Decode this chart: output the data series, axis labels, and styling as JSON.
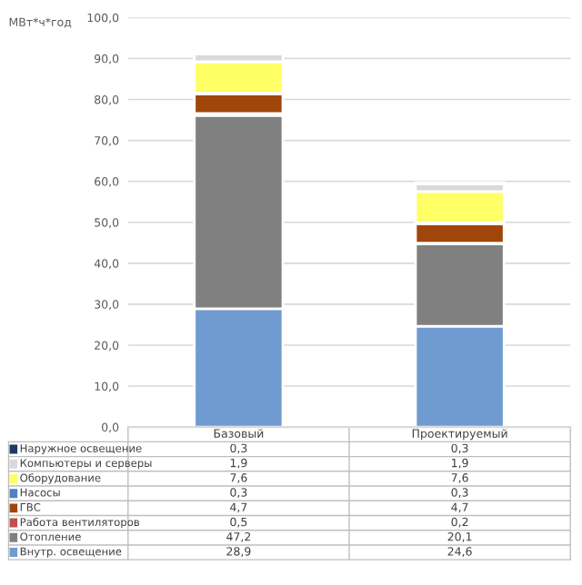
{
  "chart_data": {
    "type": "bar",
    "stacked": true,
    "ylabel": "МВт*ч*год",
    "categories": [
      "Базовый",
      "Проектируемый"
    ],
    "series": [
      {
        "name": "Внутр. освещение",
        "color": "#6f9bd1",
        "values": [
          28.9,
          24.6
        ],
        "value_labels": [
          "28,9",
          "24,6"
        ]
      },
      {
        "name": "Отопление",
        "color": "#808080",
        "values": [
          47.2,
          20.1
        ],
        "value_labels": [
          "47,2",
          "20,1"
        ]
      },
      {
        "name": "Работа вентиляторов",
        "color": "#c0504d",
        "values": [
          0.5,
          0.2
        ],
        "value_labels": [
          "0,5",
          "0,2"
        ]
      },
      {
        "name": "ГВС",
        "color": "#a0460a",
        "values": [
          4.7,
          4.7
        ],
        "value_labels": [
          "4,7",
          "4,7"
        ]
      },
      {
        "name": "Насосы",
        "color": "#4f81bd",
        "values": [
          0.3,
          0.3
        ],
        "value_labels": [
          "0,3",
          "0,3"
        ]
      },
      {
        "name": "Оборудование",
        "color": "#ffff66",
        "values": [
          7.6,
          7.6
        ],
        "value_labels": [
          "7,6",
          "7,6"
        ]
      },
      {
        "name": "Компьютеры и серверы",
        "color": "#d9d9d9",
        "values": [
          1.9,
          1.9
        ],
        "value_labels": [
          "1,9",
          "1,9"
        ]
      },
      {
        "name": "Наружное освещение",
        "color": "#1f3864",
        "values": [
          0.3,
          0.3
        ],
        "value_labels": [
          "0,3",
          "0,3"
        ]
      }
    ],
    "ylim": [
      0,
      100
    ],
    "yticks": [
      {
        "value": 0,
        "label": "0,0"
      },
      {
        "value": 10,
        "label": "10,0"
      },
      {
        "value": 20,
        "label": "20,0"
      },
      {
        "value": 30,
        "label": "30,0"
      },
      {
        "value": 40,
        "label": "40,0"
      },
      {
        "value": 50,
        "label": "50,0"
      },
      {
        "value": 60,
        "label": "60,0"
      },
      {
        "value": 70,
        "label": "70,0"
      },
      {
        "value": 80,
        "label": "80,0"
      },
      {
        "value": 90,
        "label": "90,0"
      },
      {
        "value": 100,
        "label": "100,0"
      }
    ],
    "grid": "y",
    "legend": "bottom"
  }
}
